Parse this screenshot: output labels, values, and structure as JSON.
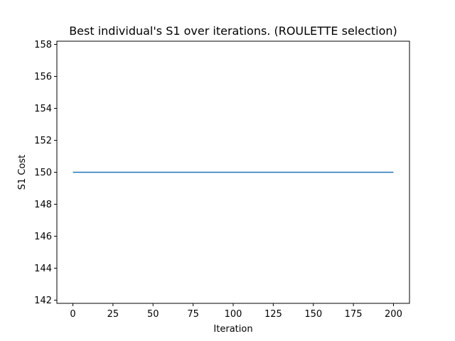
{
  "chart_data": {
    "type": "line",
    "title": "Best individual's S1 over iterations. (ROULETTE selection)",
    "xlabel": "Iteration",
    "ylabel": "S1 Cost",
    "xlim": [
      -10,
      210
    ],
    "ylim": [
      141.8,
      158.2
    ],
    "xticks": [
      0,
      25,
      50,
      75,
      100,
      125,
      150,
      175,
      200
    ],
    "yticks": [
      142,
      144,
      146,
      148,
      150,
      152,
      154,
      156,
      158
    ],
    "grid": false,
    "series": [
      {
        "color": "#1f77b4",
        "x": [
          0,
          200
        ],
        "y": [
          150,
          150
        ]
      }
    ]
  }
}
